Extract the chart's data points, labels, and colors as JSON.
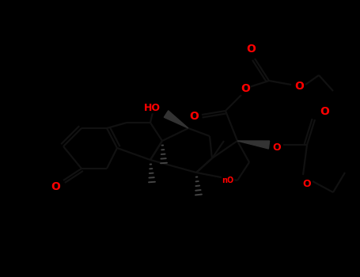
{
  "bg_color": "#000000",
  "bond_color": "#111111",
  "atom_color_O": "#ff0000",
  "line_color": "#111111",
  "bond_width": 1.6,
  "figsize": [
    4.55,
    3.5
  ],
  "dpi": 100,
  "xlim": [
    0,
    455
  ],
  "ylim": [
    0,
    350
  ]
}
